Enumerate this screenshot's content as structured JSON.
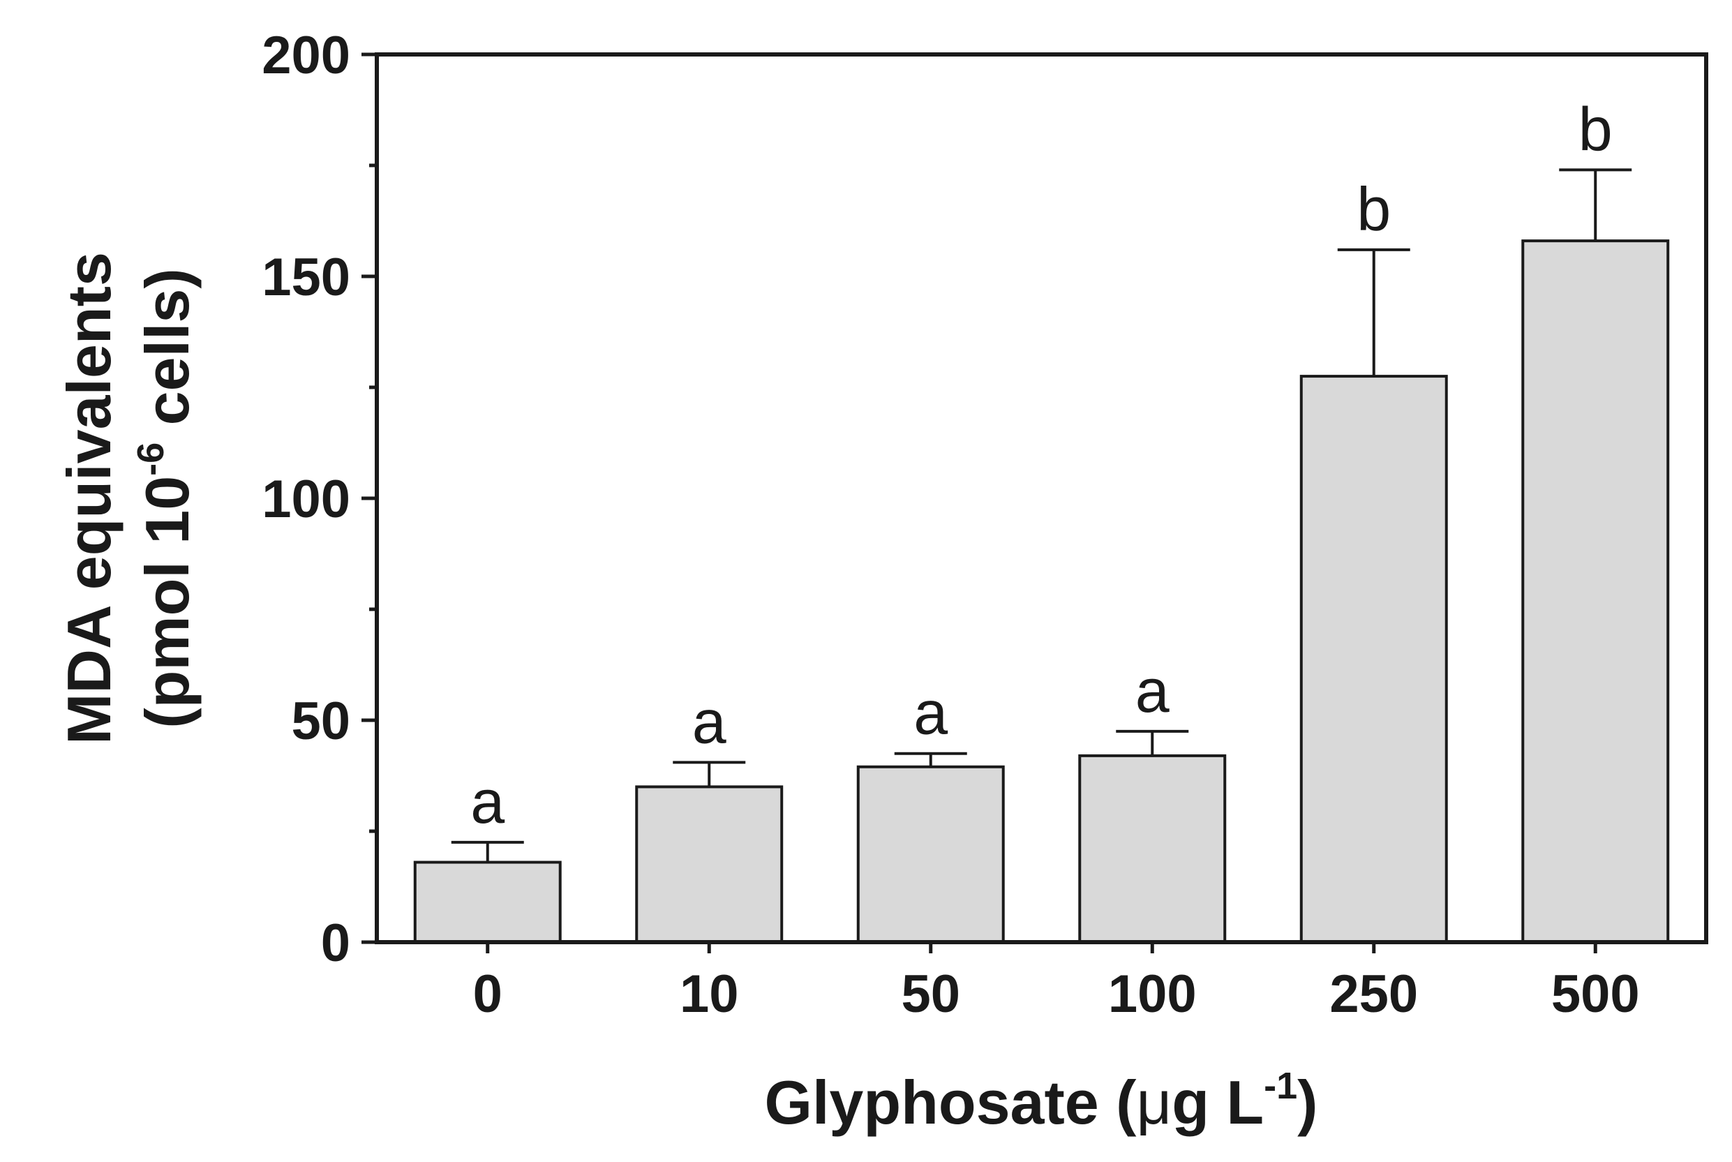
{
  "chart_data": {
    "type": "bar",
    "categories": [
      "0",
      "10",
      "50",
      "100",
      "250",
      "500"
    ],
    "values": [
      18,
      35,
      39.5,
      42,
      127.5,
      158
    ],
    "error_upper": [
      22.5,
      40.5,
      42.5,
      47.5,
      156,
      174
    ],
    "significance_letters": [
      "a",
      "a",
      "a",
      "a",
      "b",
      "b"
    ],
    "xlabel": {
      "main": "Glyphosate (",
      "mu": "μ",
      "unit": "g L",
      "sup": "-1",
      "close": ")"
    },
    "ylabel": {
      "line1": "MDA equivalents",
      "line2_pre": "(pmol 10",
      "line2_sup": "-6",
      "line2_post": " cells)"
    },
    "yticks": [
      "0",
      "50",
      "100",
      "150",
      "200"
    ],
    "ylim": [
      0,
      200
    ],
    "grid": false,
    "bar_color": "#d9d9d9",
    "axis_color": "#1a1a1a"
  }
}
